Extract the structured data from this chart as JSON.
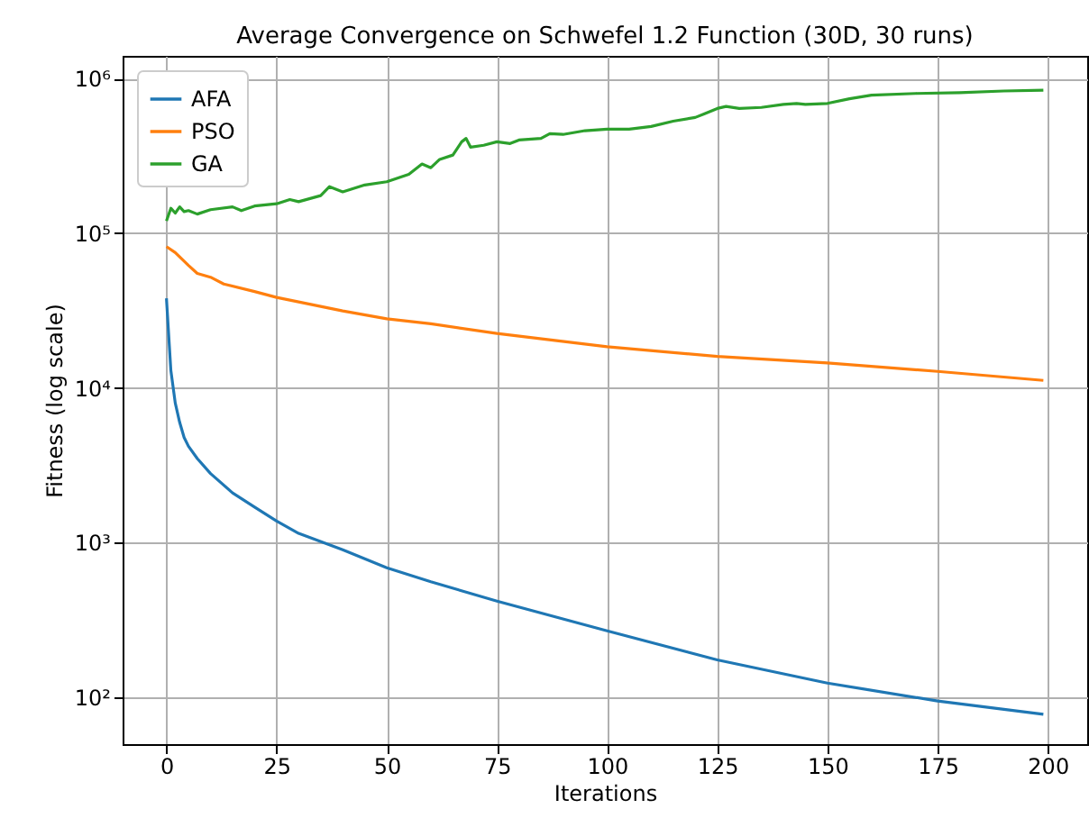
{
  "chart_data": {
    "type": "line",
    "title": "Average Convergence on Schwefel 1.2 Function (30D, 30 runs)",
    "xlabel": "Iterations",
    "ylabel": "Fitness (log scale)",
    "log": "y",
    "grid": true,
    "legend": "top left",
    "line_style": "solid",
    "marker": "none",
    "xlim": [
      -9.95,
      208.95
    ],
    "xticks": [
      0,
      25,
      50,
      75,
      100,
      125,
      150,
      175,
      200
    ],
    "ylim": [
      50,
      1400000
    ],
    "yticks": [
      {
        "value": 100,
        "label": "10²"
      },
      {
        "value": 1000,
        "label": "10³"
      },
      {
        "value": 10000,
        "label": "10⁴"
      },
      {
        "value": 100000,
        "label": "10⁵"
      },
      {
        "value": 1000000,
        "label": "10⁶"
      }
    ],
    "series": [
      {
        "name": "AFA",
        "color": "#1f77b4",
        "x": [
          0,
          1,
          2,
          3,
          4,
          5,
          7,
          10,
          15,
          20,
          25,
          30,
          40,
          50,
          60,
          75,
          100,
          125,
          150,
          175,
          199
        ],
        "values": [
          38000,
          13000,
          8000,
          6000,
          4800,
          4200,
          3500,
          2800,
          2100,
          1700,
          1380,
          1150,
          900,
          690,
          560,
          420,
          270,
          175,
          124,
          95,
          78
        ]
      },
      {
        "name": "PSO",
        "color": "#ff7f0e",
        "x": [
          0,
          2,
          5,
          7,
          10,
          13,
          20,
          25,
          30,
          40,
          50,
          60,
          75,
          100,
          125,
          150,
          175,
          199
        ],
        "values": [
          82000,
          75000,
          62000,
          55000,
          52000,
          47000,
          42000,
          38500,
          36000,
          31500,
          28000,
          26000,
          22500,
          18500,
          16000,
          14500,
          12800,
          11200
        ]
      },
      {
        "name": "GA",
        "color": "#2ca02c",
        "x": [
          0,
          1,
          2,
          3,
          4,
          5,
          7,
          10,
          15,
          17,
          20,
          25,
          28,
          30,
          35,
          37,
          40,
          45,
          50,
          55,
          58,
          60,
          62,
          65,
          67,
          68,
          69,
          72,
          75,
          78,
          80,
          85,
          87,
          90,
          95,
          100,
          105,
          110,
          115,
          120,
          122,
          125,
          127,
          130,
          135,
          140,
          143,
          145,
          150,
          155,
          160,
          170,
          180,
          190,
          199
        ],
        "values": [
          120000,
          145000,
          135000,
          148000,
          138000,
          140000,
          133000,
          142000,
          148000,
          140000,
          150000,
          155000,
          165000,
          160000,
          175000,
          200000,
          185000,
          205000,
          215000,
          240000,
          280000,
          265000,
          300000,
          320000,
          390000,
          410000,
          360000,
          370000,
          390000,
          380000,
          400000,
          410000,
          440000,
          435000,
          460000,
          470000,
          470000,
          490000,
          530000,
          560000,
          590000,
          640000,
          660000,
          640000,
          650000,
          680000,
          690000,
          680000,
          690000,
          740000,
          780000,
          800000,
          810000,
          830000,
          840000
        ]
      }
    ]
  }
}
